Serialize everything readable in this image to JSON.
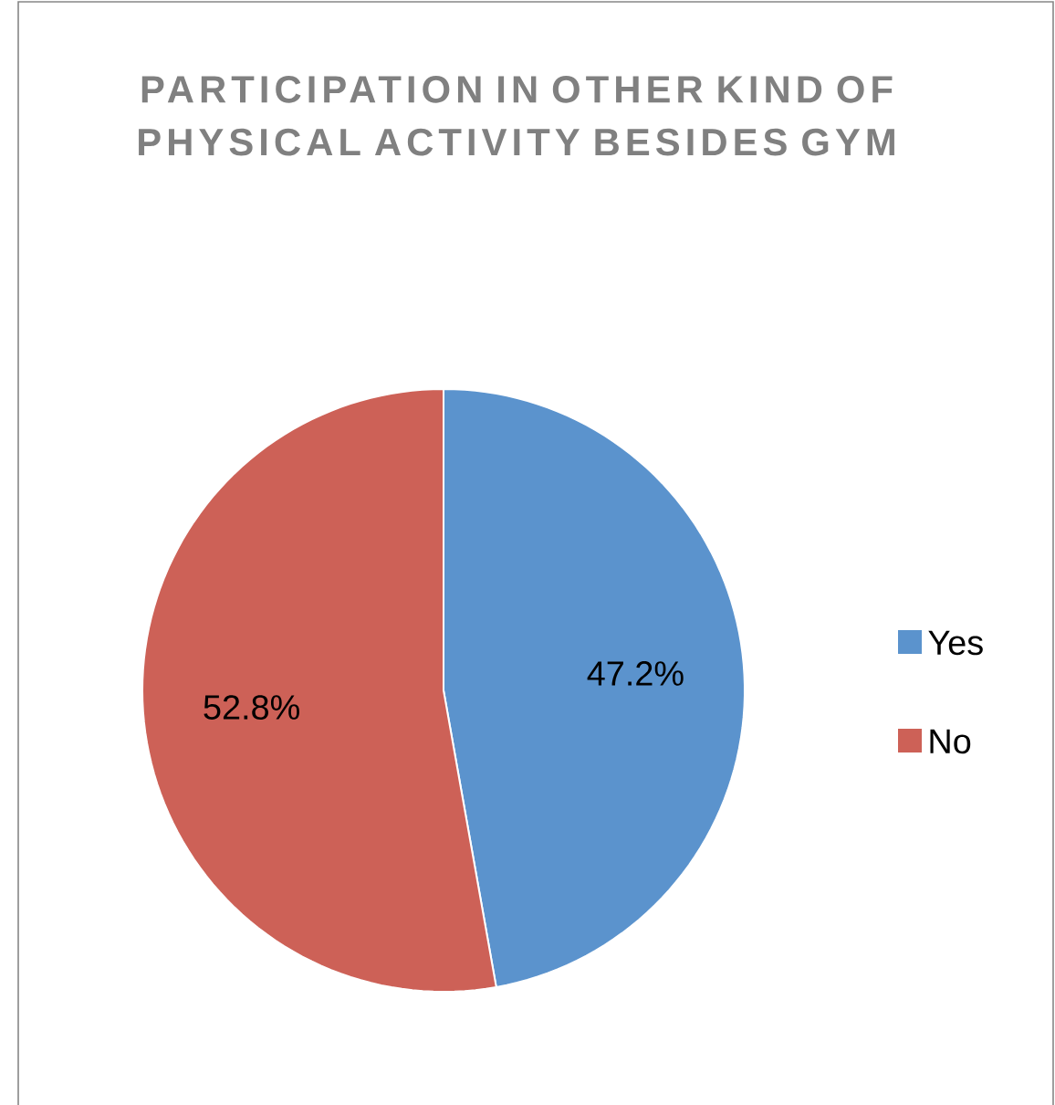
{
  "chart_data": {
    "type": "pie",
    "title": "PARTICIPATION IN OTHER KIND OF PHYSICAL ACTIVITY BESIDES GYM",
    "categories": [
      "Yes",
      "No"
    ],
    "values": [
      47.2,
      52.8
    ],
    "value_labels": [
      "47.2%",
      "52.8%"
    ],
    "colors": [
      "#5b93cd",
      "#cd6157"
    ],
    "legend": "right"
  }
}
